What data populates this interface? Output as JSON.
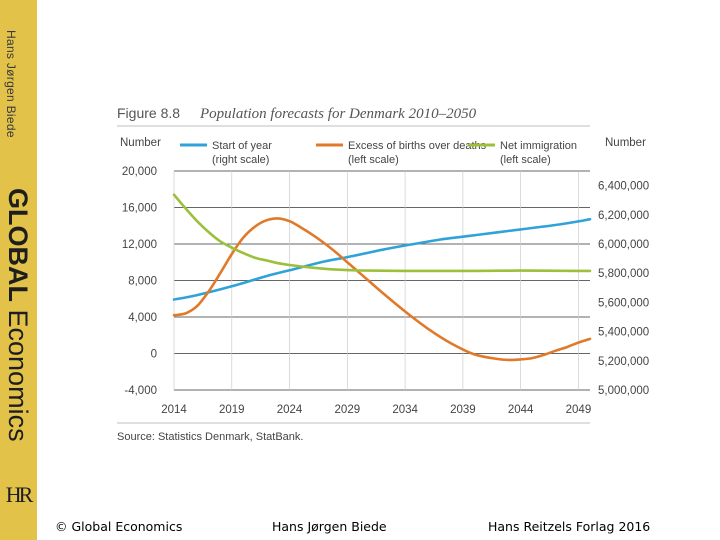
{
  "sidebar": {
    "author": "Hans Jørgen Biede",
    "title_bold": "GLOBAL",
    "title_rest": "Economics",
    "logo": "HR"
  },
  "footer": {
    "copyright": "© Global Economics",
    "author": "Hans Jørgen Biede",
    "publisher": "Hans Reitzels Forlag 2016"
  },
  "colors": {
    "sidebar": "#e3c24a",
    "start_of_year": "#2fa3d8",
    "births": "#e07a2a",
    "immigration": "#9cc03a"
  },
  "chart_data": {
    "type": "line",
    "figure_label": "Figure 8.8",
    "title": "Population forecasts for Denmark 2010–2050",
    "ylabel_left": "Number",
    "ylabel_right": "Number",
    "source": "Source: Statistics Denmark, StatBank.",
    "xlim": [
      2014,
      2050
    ],
    "ylim_left": [
      -4000,
      20000
    ],
    "ylim_right": [
      5000000,
      6500000
    ],
    "x_ticks": [
      2014,
      2019,
      2024,
      2029,
      2034,
      2039,
      2044,
      2049
    ],
    "y_ticks_left": [
      {
        "v": 20000,
        "label": "20,000"
      },
      {
        "v": 16000,
        "label": "16,000"
      },
      {
        "v": 12000,
        "label": "12,000"
      },
      {
        "v": 8000,
        "label": "8,000"
      },
      {
        "v": 4000,
        "label": "4,000"
      },
      {
        "v": 0,
        "label": "0"
      },
      {
        "v": -4000,
        "label": "-4,000"
      }
    ],
    "y_ticks_right": [
      {
        "v": 6400000,
        "label": "6,400,000"
      },
      {
        "v": 6200000,
        "label": "6,200,000"
      },
      {
        "v": 6000000,
        "label": "6,000,000"
      },
      {
        "v": 5800000,
        "label": "5,800,000"
      },
      {
        "v": 5600000,
        "label": "5,600,000"
      },
      {
        "v": 5400000,
        "label": "5,400,000"
      },
      {
        "v": 5200000,
        "label": "5,200,000"
      },
      {
        "v": 5000000,
        "label": "5,000,000"
      }
    ],
    "series": [
      {
        "name": "Start of year",
        "scale_note": "(right scale)",
        "axis": "right",
        "color": "#2fa3d8",
        "x": [
          2014,
          2016,
          2019,
          2022,
          2024,
          2027,
          2029,
          2032,
          2034,
          2037,
          2039,
          2042,
          2044,
          2047,
          2049,
          2050
        ],
        "y": [
          5620000,
          5650000,
          5710000,
          5780000,
          5820000,
          5880000,
          5910000,
          5960000,
          5990000,
          6030000,
          6050000,
          6080000,
          6100000,
          6130000,
          6155000,
          6170000
        ]
      },
      {
        "name": "Excess of births over deaths",
        "scale_note": "(left scale)",
        "axis": "left",
        "color": "#e07a2a",
        "x": [
          2014,
          2015,
          2016,
          2017,
          2018,
          2019,
          2020,
          2021,
          2022,
          2023,
          2024,
          2025,
          2026,
          2027,
          2028,
          2029,
          2030,
          2032,
          2034,
          2036,
          2038,
          2040,
          2042,
          2043,
          2044,
          2045,
          2046,
          2047,
          2048,
          2049,
          2050
        ],
        "y": [
          4200,
          4400,
          5200,
          6800,
          8800,
          10900,
          12700,
          13900,
          14600,
          14800,
          14500,
          13800,
          13000,
          12100,
          11100,
          10000,
          8900,
          6700,
          4600,
          2700,
          1100,
          -100,
          -600,
          -700,
          -650,
          -500,
          -150,
          300,
          700,
          1200,
          1600
        ]
      },
      {
        "name": "Net immigration",
        "scale_note": "(left scale)",
        "axis": "left",
        "color": "#9cc03a",
        "x": [
          2014,
          2015,
          2016,
          2017,
          2018,
          2019,
          2020,
          2021,
          2022,
          2023,
          2024,
          2026,
          2028,
          2030,
          2034,
          2040,
          2044,
          2049,
          2050
        ],
        "y": [
          17400,
          15900,
          14500,
          13300,
          12300,
          11600,
          11000,
          10500,
          10200,
          9900,
          9700,
          9400,
          9200,
          9100,
          9050,
          9050,
          9080,
          9050,
          9050
        ]
      }
    ]
  }
}
